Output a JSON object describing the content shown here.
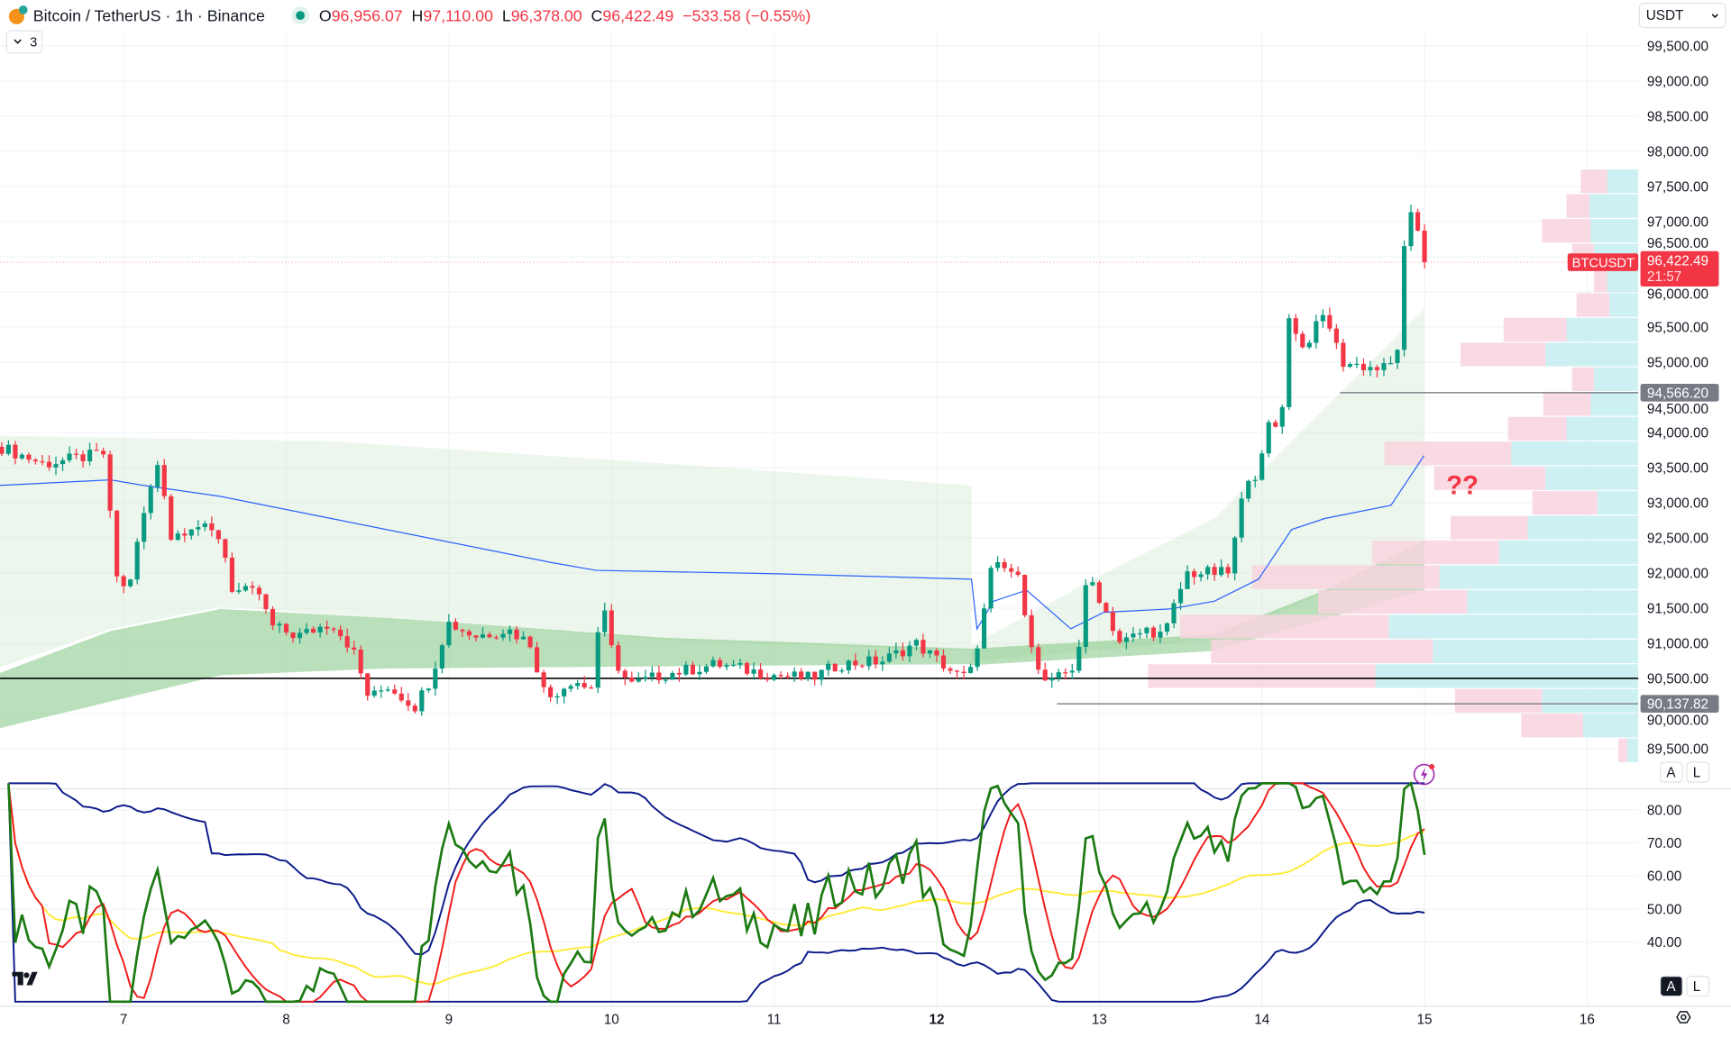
{
  "header": {
    "title": "Bitcoin / TetherUS · 1h · Binance",
    "o_label": "O",
    "o_value": "96,956.07",
    "h_label": "H",
    "h_value": "97,110.00",
    "l_label": "L",
    "l_value": "96,378.00",
    "c_label": "C",
    "c_value": "96,422.49",
    "change": "−533.58 (−0.55%)",
    "indicators_toggle_count": "3"
  },
  "currency_select": "USDT",
  "price_axis": {
    "ticks": [
      "99,500.00",
      "99,000.00",
      "98,500.00",
      "98,000.00",
      "97,500.00",
      "97,000.00",
      "96,500.00",
      "96,000.00",
      "95,500.00",
      "95,000.00",
      "94,500.00",
      "94,000.00",
      "93,500.00",
      "93,000.00",
      "92,500.00",
      "92,000.00",
      "91,500.00",
      "91,000.00",
      "90,500.00",
      "90,000.00",
      "89,500.00"
    ],
    "tick_values": [
      99500,
      99000,
      98500,
      98000,
      97500,
      97000,
      96500,
      96000,
      95500,
      95000,
      94500,
      94000,
      93500,
      93000,
      92500,
      92000,
      91500,
      91000,
      90500,
      90000,
      89500
    ],
    "symbol_label": "BTCUSDT",
    "last_price": "96,422.49",
    "last_price_value": 96422.49,
    "countdown": "21:57",
    "level_labels": [
      {
        "text": "94,566.20",
        "value": 94566.2,
        "from_day": 14.48
      },
      {
        "text": "90,137.82",
        "value": 90137.82,
        "from_day": 12.74
      }
    ],
    "support_line_value": 90500,
    "auto_label": "A",
    "log_label": "L"
  },
  "indicator_axis": {
    "ticks": [
      "80.00",
      "70.00",
      "60.00",
      "50.00",
      "40.00"
    ],
    "tick_values": [
      80,
      70,
      60,
      50,
      40
    ],
    "auto_label": "A",
    "log_label": "L"
  },
  "time_axis": {
    "ticks": [
      "7",
      "8",
      "9",
      "10",
      "11",
      "12",
      "13",
      "14",
      "15",
      "16"
    ],
    "tick_days": [
      7,
      8,
      9,
      10,
      11,
      12,
      13,
      14,
      15,
      16
    ],
    "bold_tick": "12"
  },
  "annotation": "??",
  "colors": {
    "up": "#089981",
    "down": "#f23645",
    "ma": "#2962ff",
    "rsi": "#1b7a12",
    "signal": "#f01c1c",
    "slow": "#ffeb3b",
    "bands": "#0d1a8a",
    "profile_up": "#c8eef2",
    "profile_down": "#f8d3df"
  },
  "chart_data": {
    "type": "candlestick",
    "interval": "1h",
    "price_path": [
      [
        6.24,
        93795
      ],
      [
        6.51,
        93550
      ],
      [
        6.88,
        93700
      ],
      [
        6.95,
        92000
      ],
      [
        7.02,
        91700
      ],
      [
        7.12,
        92800
      ],
      [
        7.22,
        93650
      ],
      [
        7.29,
        92500
      ],
      [
        7.43,
        92700
      ],
      [
        7.6,
        92500
      ],
      [
        7.67,
        91750
      ],
      [
        7.84,
        91700
      ],
      [
        7.9,
        91250
      ],
      [
        8.07,
        91100
      ],
      [
        8.28,
        91300
      ],
      [
        8.41,
        90900
      ],
      [
        8.51,
        90200
      ],
      [
        8.62,
        90400
      ],
      [
        8.79,
        90100
      ],
      [
        8.89,
        90500
      ],
      [
        8.99,
        91300
      ],
      [
        9.16,
        91100
      ],
      [
        9.36,
        91200
      ],
      [
        9.5,
        91000
      ],
      [
        9.6,
        90200
      ],
      [
        9.77,
        90500
      ],
      [
        9.87,
        90300
      ],
      [
        9.94,
        91600
      ],
      [
        10.01,
        90800
      ],
      [
        10.11,
        90400
      ],
      [
        10.31,
        90550
      ],
      [
        10.65,
        90700
      ],
      [
        10.99,
        90550
      ],
      [
        11.23,
        90500
      ],
      [
        11.4,
        90700
      ],
      [
        11.67,
        90750
      ],
      [
        11.87,
        91000
      ],
      [
        12.01,
        90750
      ],
      [
        12.15,
        90500
      ],
      [
        12.21,
        90600
      ],
      [
        12.28,
        91300
      ],
      [
        12.34,
        92100
      ],
      [
        12.49,
        92000
      ],
      [
        12.55,
        91400
      ],
      [
        12.62,
        90600
      ],
      [
        12.69,
        90400
      ],
      [
        12.86,
        90700
      ],
      [
        12.93,
        92000
      ],
      [
        13.03,
        91500
      ],
      [
        13.13,
        91000
      ],
      [
        13.3,
        91200
      ],
      [
        13.4,
        91100
      ],
      [
        13.47,
        91600
      ],
      [
        13.54,
        92000
      ],
      [
        13.71,
        92000
      ],
      [
        13.81,
        92000
      ],
      [
        13.84,
        92600
      ],
      [
        13.91,
        93400
      ],
      [
        13.98,
        93400
      ],
      [
        14.05,
        94200
      ],
      [
        14.11,
        94000
      ],
      [
        14.17,
        95700
      ],
      [
        14.25,
        95200
      ],
      [
        14.39,
        95700
      ],
      [
        14.49,
        95000
      ],
      [
        14.73,
        94900
      ],
      [
        14.83,
        95000
      ],
      [
        14.85,
        96300
      ],
      [
        14.93,
        97200
      ],
      [
        15.0,
        96422
      ]
    ],
    "volume_profile": {
      "price_range": [
        89300,
        97750
      ],
      "rows_top_to_bottom": [
        [
          52,
          28
        ],
        [
          65,
          44
        ],
        [
          87,
          43
        ],
        [
          60,
          40
        ],
        [
          40,
          28
        ],
        [
          56,
          26
        ],
        [
          122,
          65
        ],
        [
          161,
          84
        ],
        [
          60,
          40
        ],
        [
          86,
          43
        ],
        [
          118,
          65
        ],
        [
          230,
          115
        ],
        [
          185,
          84
        ],
        [
          96,
          37
        ],
        [
          170,
          100
        ],
        [
          241,
          126
        ],
        [
          350,
          180
        ],
        [
          290,
          155
        ],
        [
          415,
          226
        ],
        [
          387,
          186
        ],
        [
          444,
          238
        ],
        [
          166,
          87
        ],
        [
          106,
          50
        ],
        [
          18,
          10
        ]
      ]
    }
  }
}
